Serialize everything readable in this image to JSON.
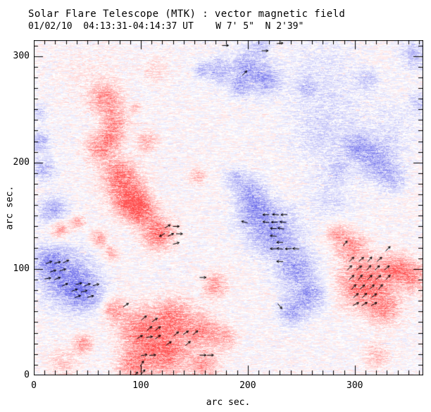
{
  "chart_data": {
    "type": "heatmap",
    "title": "Solar Flare Telescope (MTK) : vector magnetic field",
    "subtitle": "01/02/10  04:13:31-04:14:37 UT    W 7' 5\"  N 2'39\"",
    "xlabel": "arc sec.",
    "ylabel": "arc sec.",
    "xlim": [
      0,
      364
    ],
    "ylim": [
      0,
      315
    ],
    "x_major_ticks": [
      0,
      100,
      200,
      300
    ],
    "y_major_ticks": [
      0,
      100,
      200,
      300
    ],
    "minor_tick_step": 10,
    "legend": "none",
    "grid": false,
    "colors": {
      "positive_polarity": "#ff5a5a",
      "negative_polarity": "#7b7be8",
      "axis": "#000000",
      "arrows": "#000000",
      "background": "#ffffff"
    },
    "field_blobs_arcsec": {
      "comment_units": "[x, y, radius, strength] in arc sec, strength 0-1",
      "red": [
        [
          67,
          260,
          18,
          0.5
        ],
        [
          75,
          239,
          15,
          0.45
        ],
        [
          61,
          214,
          16,
          0.5
        ],
        [
          72,
          223,
          13,
          0.45
        ],
        [
          79,
          189,
          20,
          0.62
        ],
        [
          90,
          166,
          21,
          0.8
        ],
        [
          100,
          154,
          16,
          0.55
        ],
        [
          105,
          220,
          12,
          0.35
        ],
        [
          95,
          252,
          6,
          0.3
        ],
        [
          153,
          188,
          9,
          0.33
        ],
        [
          24,
          138,
          11,
          0.5
        ],
        [
          41,
          144,
          8,
          0.45
        ],
        [
          61,
          129,
          9,
          0.45
        ],
        [
          72,
          115,
          8,
          0.4
        ],
        [
          116,
          134,
          18,
          0.7
        ],
        [
          100,
          42,
          25,
          0.65
        ],
        [
          130,
          55,
          22,
          0.55
        ],
        [
          123,
          22,
          25,
          0.7
        ],
        [
          156,
          42,
          20,
          0.5
        ],
        [
          93,
          9,
          18,
          0.55
        ],
        [
          159,
          10,
          16,
          0.45
        ],
        [
          75,
          62,
          13,
          0.45
        ],
        [
          178,
          35,
          15,
          0.35
        ],
        [
          169,
          85,
          14,
          0.45
        ],
        [
          46,
          30,
          10,
          0.55
        ],
        [
          28,
          12,
          16,
          0.25
        ],
        [
          309,
          87,
          28,
          0.75
        ],
        [
          296,
          122,
          16,
          0.5
        ],
        [
          327,
          63,
          18,
          0.5
        ],
        [
          338,
          100,
          17,
          0.55
        ],
        [
          283,
          134,
          11,
          0.4
        ],
        [
          355,
          93,
          18,
          0.45
        ],
        [
          320,
          19,
          14,
          0.3
        ],
        [
          54,
          280,
          33,
          0.08
        ],
        [
          113,
          287,
          16,
          0.15
        ]
      ],
      "blue": [
        [
          5,
          247,
          9,
          0.3
        ],
        [
          6,
          220,
          12,
          0.4
        ],
        [
          9,
          194,
          13,
          0.4
        ],
        [
          18,
          154,
          17,
          0.45
        ],
        [
          31,
          91,
          30,
          0.62
        ],
        [
          47,
          78,
          20,
          0.5
        ],
        [
          14,
          108,
          17,
          0.5
        ],
        [
          172,
          287,
          15,
          0.4
        ],
        [
          199,
          291,
          17,
          0.5
        ],
        [
          216,
          278,
          17,
          0.5
        ],
        [
          192,
          272,
          13,
          0.4
        ],
        [
          156,
          287,
          9,
          0.3
        ],
        [
          212,
          310,
          12,
          0.3
        ],
        [
          255,
          270,
          11,
          0.28
        ],
        [
          311,
          279,
          13,
          0.28
        ],
        [
          355,
          301,
          16,
          0.35
        ],
        [
          360,
          257,
          12,
          0.25
        ],
        [
          319,
          204,
          22,
          0.5
        ],
        [
          301,
          215,
          16,
          0.4
        ],
        [
          334,
          186,
          16,
          0.35
        ],
        [
          284,
          194,
          13,
          0.25
        ],
        [
          225,
          134,
          28,
          0.55
        ],
        [
          207,
          153,
          20,
          0.5
        ],
        [
          245,
          100,
          22,
          0.55
        ],
        [
          258,
          75,
          18,
          0.5
        ],
        [
          241,
          60,
          16,
          0.45
        ],
        [
          202,
          173,
          17,
          0.45
        ],
        [
          188,
          186,
          12,
          0.35
        ],
        [
          278,
          254,
          46,
          0.12
        ],
        [
          264,
          293,
          40,
          0.1
        ],
        [
          337,
          234,
          33,
          0.12
        ],
        [
          278,
          168,
          26,
          0.18
        ],
        [
          268,
          221,
          33,
          0.15
        ]
      ]
    },
    "vector_arrows_arcsec": {
      "comment_units": "[x, y, direction_deg] direction measured CCW from +x",
      "length_arcsec": 6,
      "items": [
        [
          14,
          106,
          20
        ],
        [
          22,
          106,
          12
        ],
        [
          30,
          107,
          25
        ],
        [
          18,
          98,
          18
        ],
        [
          27,
          99,
          15
        ],
        [
          13,
          91,
          10
        ],
        [
          22,
          91,
          20
        ],
        [
          29,
          85,
          25
        ],
        [
          42,
          86,
          15
        ],
        [
          50,
          85,
          20
        ],
        [
          58,
          85,
          15
        ],
        [
          38,
          80,
          20
        ],
        [
          47,
          79,
          15
        ],
        [
          41,
          74,
          20
        ],
        [
          53,
          74,
          15
        ],
        [
          125,
          140,
          30
        ],
        [
          133,
          140,
          0
        ],
        [
          120,
          132,
          210
        ],
        [
          128,
          132,
          25
        ],
        [
          136,
          133,
          0
        ],
        [
          133,
          124,
          15
        ],
        [
          103,
          54,
          40
        ],
        [
          113,
          52,
          35
        ],
        [
          108,
          44,
          40
        ],
        [
          116,
          44,
          35
        ],
        [
          99,
          36,
          30
        ],
        [
          108,
          36,
          10
        ],
        [
          116,
          36,
          35
        ],
        [
          133,
          39,
          40
        ],
        [
          142,
          40,
          35
        ],
        [
          151,
          40,
          40
        ],
        [
          126,
          30,
          35
        ],
        [
          144,
          30,
          40
        ],
        [
          103,
          19,
          10
        ],
        [
          111,
          19,
          5
        ],
        [
          101,
          11,
          60
        ],
        [
          102,
          3,
          50
        ],
        [
          95,
          1,
          45
        ],
        [
          158,
          19,
          0
        ],
        [
          165,
          19,
          0
        ],
        [
          86,
          66,
          35
        ],
        [
          158,
          92,
          0
        ],
        [
          217,
          151,
          180
        ],
        [
          226,
          151,
          175
        ],
        [
          234,
          151,
          182
        ],
        [
          217,
          144,
          172
        ],
        [
          225,
          144,
          180
        ],
        [
          233,
          144,
          174
        ],
        [
          224,
          138,
          178
        ],
        [
          231,
          138,
          170
        ],
        [
          224,
          131,
          175
        ],
        [
          230,
          125,
          178
        ],
        [
          224,
          119,
          180
        ],
        [
          230,
          119,
          172
        ],
        [
          238,
          119,
          183
        ],
        [
          245,
          119,
          176
        ],
        [
          230,
          107,
          178
        ],
        [
          197,
          144,
          165
        ],
        [
          230,
          65,
          310
        ],
        [
          197,
          284,
          45
        ],
        [
          216,
          305,
          0
        ],
        [
          230,
          312,
          5
        ],
        [
          179,
          310,
          0
        ],
        [
          297,
          109,
          45
        ],
        [
          306,
          109,
          40
        ],
        [
          314,
          109,
          50
        ],
        [
          323,
          109,
          42
        ],
        [
          295,
          101,
          45
        ],
        [
          304,
          101,
          38
        ],
        [
          313,
          101,
          48
        ],
        [
          321,
          101,
          45
        ],
        [
          330,
          101,
          40
        ],
        [
          297,
          92,
          42
        ],
        [
          305,
          92,
          50
        ],
        [
          314,
          92,
          45
        ],
        [
          322,
          92,
          40
        ],
        [
          331,
          92,
          46
        ],
        [
          299,
          83,
          48
        ],
        [
          307,
          83,
          42
        ],
        [
          316,
          83,
          45
        ],
        [
          324,
          83,
          50
        ],
        [
          301,
          75,
          40
        ],
        [
          309,
          75,
          45
        ],
        [
          318,
          75,
          35
        ],
        [
          301,
          67,
          25
        ],
        [
          309,
          67,
          30
        ],
        [
          318,
          67,
          28
        ],
        [
          291,
          124,
          50
        ],
        [
          331,
          119,
          45
        ]
      ]
    }
  }
}
